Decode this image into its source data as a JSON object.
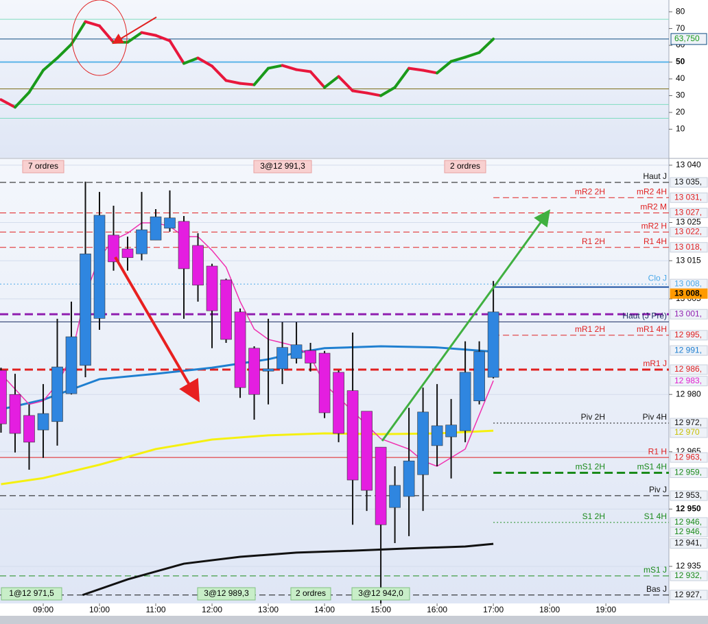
{
  "chart_data": [
    {
      "type": "line",
      "x": [
        8.25,
        8.5,
        8.75,
        9,
        9.25,
        9.5,
        9.75,
        10,
        10.25,
        10.5,
        10.75,
        11,
        11.25,
        11.5,
        11.75,
        12,
        12.25,
        12.5,
        12.75,
        13,
        13.25,
        13.5,
        13.75,
        14,
        14.25,
        14.5,
        14.75,
        15,
        15.25,
        15.5,
        15.75,
        16,
        16.25,
        16.5,
        16.75,
        17
      ],
      "values": [
        27.6,
        23.1,
        32.0,
        45.1,
        52.4,
        60.6,
        74.1,
        71.6,
        61.8,
        61.8,
        67.6,
        65.9,
        62.7,
        49.2,
        52.4,
        47.6,
        39.0,
        37.3,
        36.5,
        46.3,
        48.0,
        45.5,
        44.3,
        34.9,
        41.4,
        32.9,
        31.6,
        30.0,
        34.9,
        46.3,
        45.1,
        43.5,
        50.4,
        52.9,
        55.7,
        63.75
      ],
      "up_color": "#1a9a1a",
      "down_color": "#e8173c",
      "xlim": [
        8.232,
        20.12
      ],
      "ylim": [
        -7,
        87
      ],
      "yticks": [
        10,
        20,
        30,
        40,
        50,
        60,
        70,
        80
      ],
      "levels": [
        {
          "value": 75.5,
          "color": "#7fdcc0"
        },
        {
          "value": 63.75,
          "label": "63,750",
          "color": "#0f4c81",
          "text_color": "#1a9a1a"
        },
        {
          "value": 50,
          "color": "#5ab4e8"
        },
        {
          "value": 34,
          "color": "#7a6a10"
        },
        {
          "value": 24.7,
          "color": "#7fdcc0"
        },
        {
          "value": 16.5,
          "color": "#7fdcc0"
        }
      ]
    },
    {
      "type": "candlestick",
      "x": [
        8.25,
        8.5,
        8.75,
        9,
        9.25,
        9.5,
        9.75,
        10,
        10.25,
        10.5,
        10.75,
        11,
        11.25,
        11.5,
        11.75,
        12,
        12.25,
        12.5,
        12.75,
        13,
        13.25,
        13.5,
        13.75,
        14,
        14.25,
        14.5,
        14.75,
        15,
        15.25,
        15.5,
        15.75,
        16,
        16.25,
        16.5,
        16.75,
        17
      ],
      "open": [
        12986.3,
        12980.0,
        12974.5,
        12970.7,
        12972.9,
        12980.2,
        12987.6,
        12999.9,
        13021.7,
        13018.1,
        13016.8,
        13020.4,
        13023.5,
        13025.3,
        13019.0,
        13013.6,
        13010.0,
        13001.6,
        12992.1,
        12986.1,
        12986.7,
        12989.4,
        12991.5,
        12990.8,
        12985.8,
        12981.0,
        12975.6,
        12966.2,
        12950.4,
        12953.3,
        12959.0,
        12966.6,
        12968.9,
        12970.5,
        12978.3,
        12984.5
      ],
      "high": [
        12987.0,
        12985.4,
        12977.4,
        12982.7,
        12999.8,
        13004.3,
        13035.7,
        13033.0,
        13029.4,
        13021.3,
        13033.0,
        13028.5,
        13033.4,
        13026.7,
        13022.2,
        13014.2,
        13010.3,
        13002.5,
        12992.6,
        12999.8,
        12998.9,
        12998.9,
        12993.5,
        12991.4,
        12986.3,
        12996.2,
        12975.6,
        12966.2,
        12961.2,
        12976.5,
        12981.8,
        12982.7,
        12978.8,
        12993.9,
        12993.9,
        13009.7
      ],
      "low": [
        12970.0,
        12964.8,
        12960.3,
        12963.4,
        12966.6,
        12980.0,
        12984.5,
        12996.9,
        13012.4,
        13012.4,
        13015.1,
        13020.4,
        13022.6,
        12999.8,
        13004.3,
        12992.1,
        12993.5,
        12979.1,
        12973.4,
        12977.4,
        12982.7,
        12988.1,
        12986.0,
        12973.8,
        12967.5,
        12945.9,
        12949.5,
        12922.0,
        12941.1,
        12942.9,
        12949.5,
        12961.2,
        12958.0,
        12967.5,
        12977.4,
        12984.2
      ],
      "close": [
        12972.3,
        12969.8,
        12967.5,
        12975.0,
        12987.2,
        12995.1,
        13016.8,
        13026.9,
        13014.7,
        13015.8,
        13023.1,
        13026.5,
        13026.2,
        13012.9,
        13008.6,
        13001.9,
        12994.4,
        12981.8,
        12980.0,
        12986.7,
        12992.3,
        12993.0,
        12988.2,
        12975.2,
        12969.8,
        12957.6,
        12954.9,
        12945.9,
        12956.2,
        12962.6,
        12975.4,
        12971.8,
        12972.0,
        12985.8,
        12991.2,
        13001.6
      ],
      "up_color": "#2f86e0",
      "down_color": "#e41ee0",
      "xlim": [
        8.232,
        20.12
      ],
      "ylim": [
        12925.3,
        13041.6
      ],
      "xticks": [
        {
          "value": 9,
          "label": "09:00"
        },
        {
          "value": 10,
          "label": "10:00"
        },
        {
          "value": 11,
          "label": "11:00"
        },
        {
          "value": 12,
          "label": "12:00"
        },
        {
          "value": 13,
          "label": "13:00"
        },
        {
          "value": 14,
          "label": "14:00"
        },
        {
          "value": 15,
          "label": "15:00"
        },
        {
          "value": 16,
          "label": "16:00"
        },
        {
          "value": 17,
          "label": "17:00"
        },
        {
          "value": 18,
          "label": "18:00"
        },
        {
          "value": 19,
          "label": "19:00"
        }
      ],
      "yticks": [
        {
          "value": 13040,
          "label": "13 040"
        },
        {
          "value": 13025,
          "label": "13 025"
        },
        {
          "value": 13015,
          "label": "13 015"
        },
        {
          "value": 13005,
          "label": "13 005"
        },
        {
          "value": 12980,
          "label": "12 980"
        },
        {
          "value": 12965,
          "label": "12 965"
        },
        {
          "value": 12950,
          "label": "12 950"
        },
        {
          "value": 12935,
          "label": "12 935"
        }
      ],
      "lines": [
        {
          "color": "#111111",
          "x": [
            9.7,
            10.5,
            11.5,
            12.5,
            13.5,
            14.5,
            15.5,
            16.5,
            17
          ],
          "values": [
            12927.5,
            12931.6,
            12935.7,
            12937.5,
            12938.6,
            12939.1,
            12939.7,
            12940.2,
            12940.9
          ]
        },
        {
          "color": "#f5f010",
          "x": [
            8.25,
            9,
            10,
            11,
            12,
            13,
            14,
            15,
            16,
            17
          ],
          "values": [
            12956.5,
            12958.1,
            12961.6,
            12965.7,
            12968.2,
            12969.3,
            12969.8,
            12969.6,
            12969.8,
            12970.5
          ]
        },
        {
          "color": "#1f7fd0",
          "x": [
            8.25,
            9,
            10,
            11,
            12,
            13,
            13.5,
            14,
            15,
            16,
            17
          ],
          "values": [
            12976.1,
            12978.6,
            12984.0,
            12985.4,
            12987.0,
            12989.2,
            12990.9,
            12992.1,
            12992.6,
            12992.3,
            12991.2
          ]
        },
        {
          "color": "#f030b0",
          "x": [
            8.25,
            8.75,
            9,
            9.25,
            9.5,
            9.75,
            10,
            10.25,
            10.5,
            10.75,
            11,
            11.25,
            11.5,
            11.75,
            12,
            12.25,
            12.5,
            12.75,
            13,
            13.25,
            13.5,
            13.75,
            14,
            14.5,
            15,
            15.5,
            15.75,
            16,
            16.5,
            17
          ],
          "values": [
            12985.4,
            12977.4,
            12978.3,
            12982.7,
            12989.9,
            13006.1,
            13015.9,
            13020.4,
            13022.2,
            13024.9,
            13024.9,
            13024.0,
            13021.3,
            13021.3,
            13017.7,
            13013.3,
            13004.3,
            12997.1,
            12994.4,
            12993.5,
            12992.6,
            12989.9,
            12982.7,
            12975.6,
            12968.4,
            12965.7,
            12962.6,
            12961.2,
            12965.7,
            12983.6
          ]
        }
      ],
      "levels": [
        {
          "value": 13035.5,
          "label": "13 035,",
          "names": [
            "Haut J"
          ],
          "color": "#111111",
          "style": "dash",
          "extent": "full"
        },
        {
          "value": 13031.5,
          "label": "13 031,",
          "names": [
            "mR2 2H",
            "mR2 4H"
          ],
          "color": "#e02020",
          "style": "dash",
          "extent": "right"
        },
        {
          "value": 13027.5,
          "label": "13 027,",
          "names": [
            "mR2 M"
          ],
          "color": "#e02020",
          "style": "dash",
          "extent": "full"
        },
        {
          "value": 13022.5,
          "label": "13 022,",
          "names": [
            "mR2 H"
          ],
          "color": "#e02020",
          "style": "dash",
          "extent": "full"
        },
        {
          "value": 13018.5,
          "label": "13 018,",
          "names": [
            "R1 2H",
            "R1 4H"
          ],
          "color": "#e02020",
          "style": "dash",
          "extent": "full"
        },
        {
          "value": 13008.9,
          "label": "13 008,",
          "names": [
            "Clo J"
          ],
          "color": "#4aa8e8",
          "style": "dot",
          "extent": "full"
        },
        {
          "value": 13008.1,
          "label": "13 008,",
          "color": "#1a4fa0",
          "style": "solid",
          "extent": "right",
          "tag_color": "#ff9a00"
        },
        {
          "value": 13001,
          "label": "13 001,",
          "color": "#9020b0",
          "style": "thick-dash",
          "extent": "full"
        },
        {
          "value": 12999,
          "names": [
            "Haut (J Pré)"
          ],
          "color": "#1a2a60",
          "style": "solid",
          "extent": "full"
        },
        {
          "value": 12995.5,
          "label": "12 995,",
          "names": [
            "mR1 2H",
            "mR1 4H"
          ],
          "color": "#e02020",
          "style": "dash",
          "extent": "right"
        },
        {
          "value": 12991.5,
          "label": "12 991,",
          "color": "#1f7fd0",
          "style": "none"
        },
        {
          "value": 12986.5,
          "label": "12 986,",
          "names": [
            "mR1 J"
          ],
          "color": "#e02020",
          "style": "thick-dash",
          "extent": "full"
        },
        {
          "value": 12983.5,
          "label": "12 983,",
          "color": "#e020d0",
          "style": "none"
        },
        {
          "value": 12972.5,
          "label": "12 972,",
          "names": [
            "Piv 2H",
            "Piv 4H"
          ],
          "color": "#111111",
          "style": "dot",
          "extent": "right"
        },
        {
          "value": 12970.5,
          "label": "12 970",
          "color": "#c8c000",
          "style": "none"
        },
        {
          "value": 12963.5,
          "label": "12 963,",
          "names": [
            "R1 H"
          ],
          "color": "#e02020",
          "style": "solid",
          "extent": "full"
        },
        {
          "value": 12959.5,
          "label": "12 959,",
          "names": [
            "mS1 2H",
            "mS1 4H"
          ],
          "color": "#1a8a1a",
          "style": "thick-dash",
          "extent": "right"
        },
        {
          "value": 12953.5,
          "label": "12 953,",
          "names": [
            "Piv J"
          ],
          "color": "#111111",
          "style": "dash",
          "extent": "full"
        },
        {
          "value": 12946.5,
          "label": "12 946,",
          "names": [
            "S1 2H",
            "S1 4H"
          ],
          "color": "#1a8a1a",
          "style": "dot",
          "extent": "right"
        },
        {
          "value": 12946.3,
          "label": "12 946,",
          "color": "#1a8a1a",
          "style": "none"
        },
        {
          "value": 12941,
          "label": "12 941,",
          "color": "#111111",
          "style": "none"
        },
        {
          "value": 12932.5,
          "label": "12 932,",
          "names": [
            "mS1 J"
          ],
          "color": "#1a8a1a",
          "style": "dash",
          "extent": "full"
        },
        {
          "value": 12927.5,
          "label": "12 927,",
          "names": [
            "Bas J"
          ],
          "color": "#111111",
          "style": "dash",
          "extent": "full"
        }
      ],
      "top_notes": [
        "7 ordres",
        "3@12 991,3",
        "2 ordres"
      ],
      "bottom_notes": [
        "1@12 971,5",
        "3@12 989,3",
        "2 ordres",
        "3@12 942,0"
      ]
    }
  ]
}
